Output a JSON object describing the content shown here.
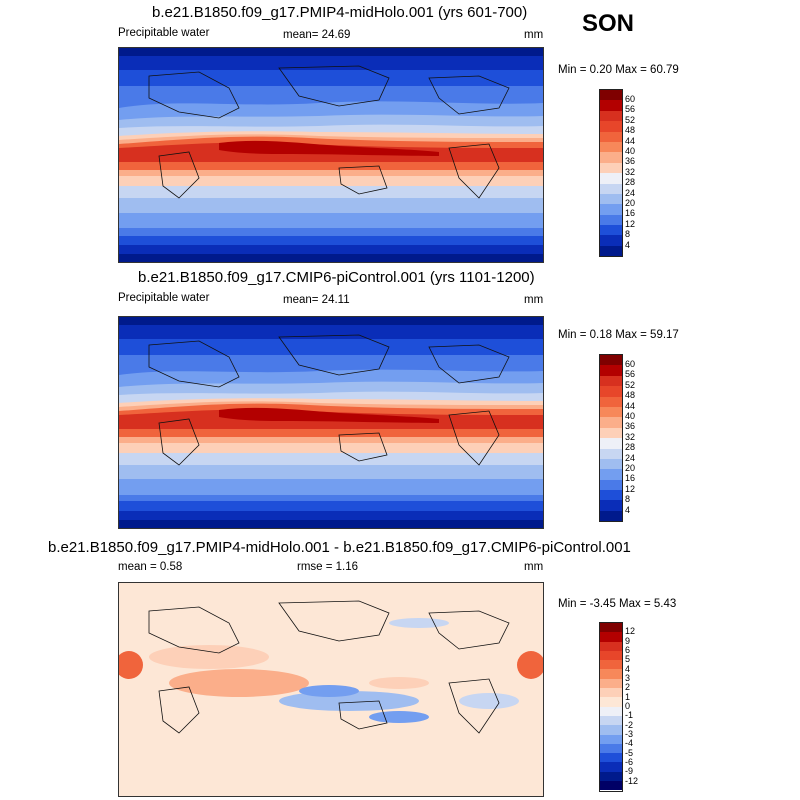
{
  "season": "SON",
  "panels": [
    {
      "title": "b.e21.B1850.f09_g17.PMIP4-midHolo.001 (yrs 601-700)",
      "left_label": "Precipitable water",
      "mean_text": "mean=  24.69",
      "units": "mm",
      "minmax": "Min =  0.20 Max =  60.79",
      "colorbar_labels": [
        "60",
        "56",
        "52",
        "48",
        "44",
        "40",
        "36",
        "32",
        "28",
        "24",
        "20",
        "16",
        "12",
        "8",
        "4"
      ],
      "colorbar_colors": [
        "#7f0000",
        "#b30000",
        "#d7301f",
        "#e7462a",
        "#f0643c",
        "#f7885a",
        "#fbae8a",
        "#fdd0b8",
        "#eef0f7",
        "#c7d6f2",
        "#9fbdf0",
        "#739ef0",
        "#4a7ae8",
        "#1e4fd9",
        "#0a2db8",
        "#001a8c"
      ]
    },
    {
      "title": "b.e21.B1850.f09_g17.CMIP6-piControl.001 (yrs 1101-1200)",
      "left_label": "Precipitable water",
      "mean_text": "mean=  24.11",
      "units": "mm",
      "minmax": "Min =  0.18 Max =  59.17",
      "colorbar_labels": [
        "60",
        "56",
        "52",
        "48",
        "44",
        "40",
        "36",
        "32",
        "28",
        "24",
        "20",
        "16",
        "12",
        "8",
        "4"
      ],
      "colorbar_colors": [
        "#7f0000",
        "#b30000",
        "#d7301f",
        "#e7462a",
        "#f0643c",
        "#f7885a",
        "#fbae8a",
        "#fdd0b8",
        "#eef0f7",
        "#c7d6f2",
        "#9fbdf0",
        "#739ef0",
        "#4a7ae8",
        "#1e4fd9",
        "#0a2db8",
        "#001a8c"
      ]
    },
    {
      "title": "b.e21.B1850.f09_g17.PMIP4-midHolo.001 - b.e21.B1850.f09_g17.CMIP6-piControl.001",
      "left_label": "mean =   0.58",
      "mean_text": "rmse =   1.16",
      "units": "mm",
      "minmax": "Min = -3.45 Max =   5.43",
      "colorbar_labels": [
        "12",
        "9",
        "6",
        "5",
        "4",
        "3",
        "2",
        "1",
        "0",
        "-1",
        "-2",
        "-3",
        "-4",
        "-5",
        "-6",
        "-9",
        "-12"
      ],
      "colorbar_colors": [
        "#7f0000",
        "#b30000",
        "#d7301f",
        "#e7462a",
        "#f0643c",
        "#f7885a",
        "#fbae8a",
        "#fdd0b8",
        "#fde7d6",
        "#eef0f7",
        "#c7d6f2",
        "#9fbdf0",
        "#739ef0",
        "#4a7ae8",
        "#1e4fd9",
        "#0a2db8",
        "#001a8c",
        "#000066"
      ]
    }
  ]
}
